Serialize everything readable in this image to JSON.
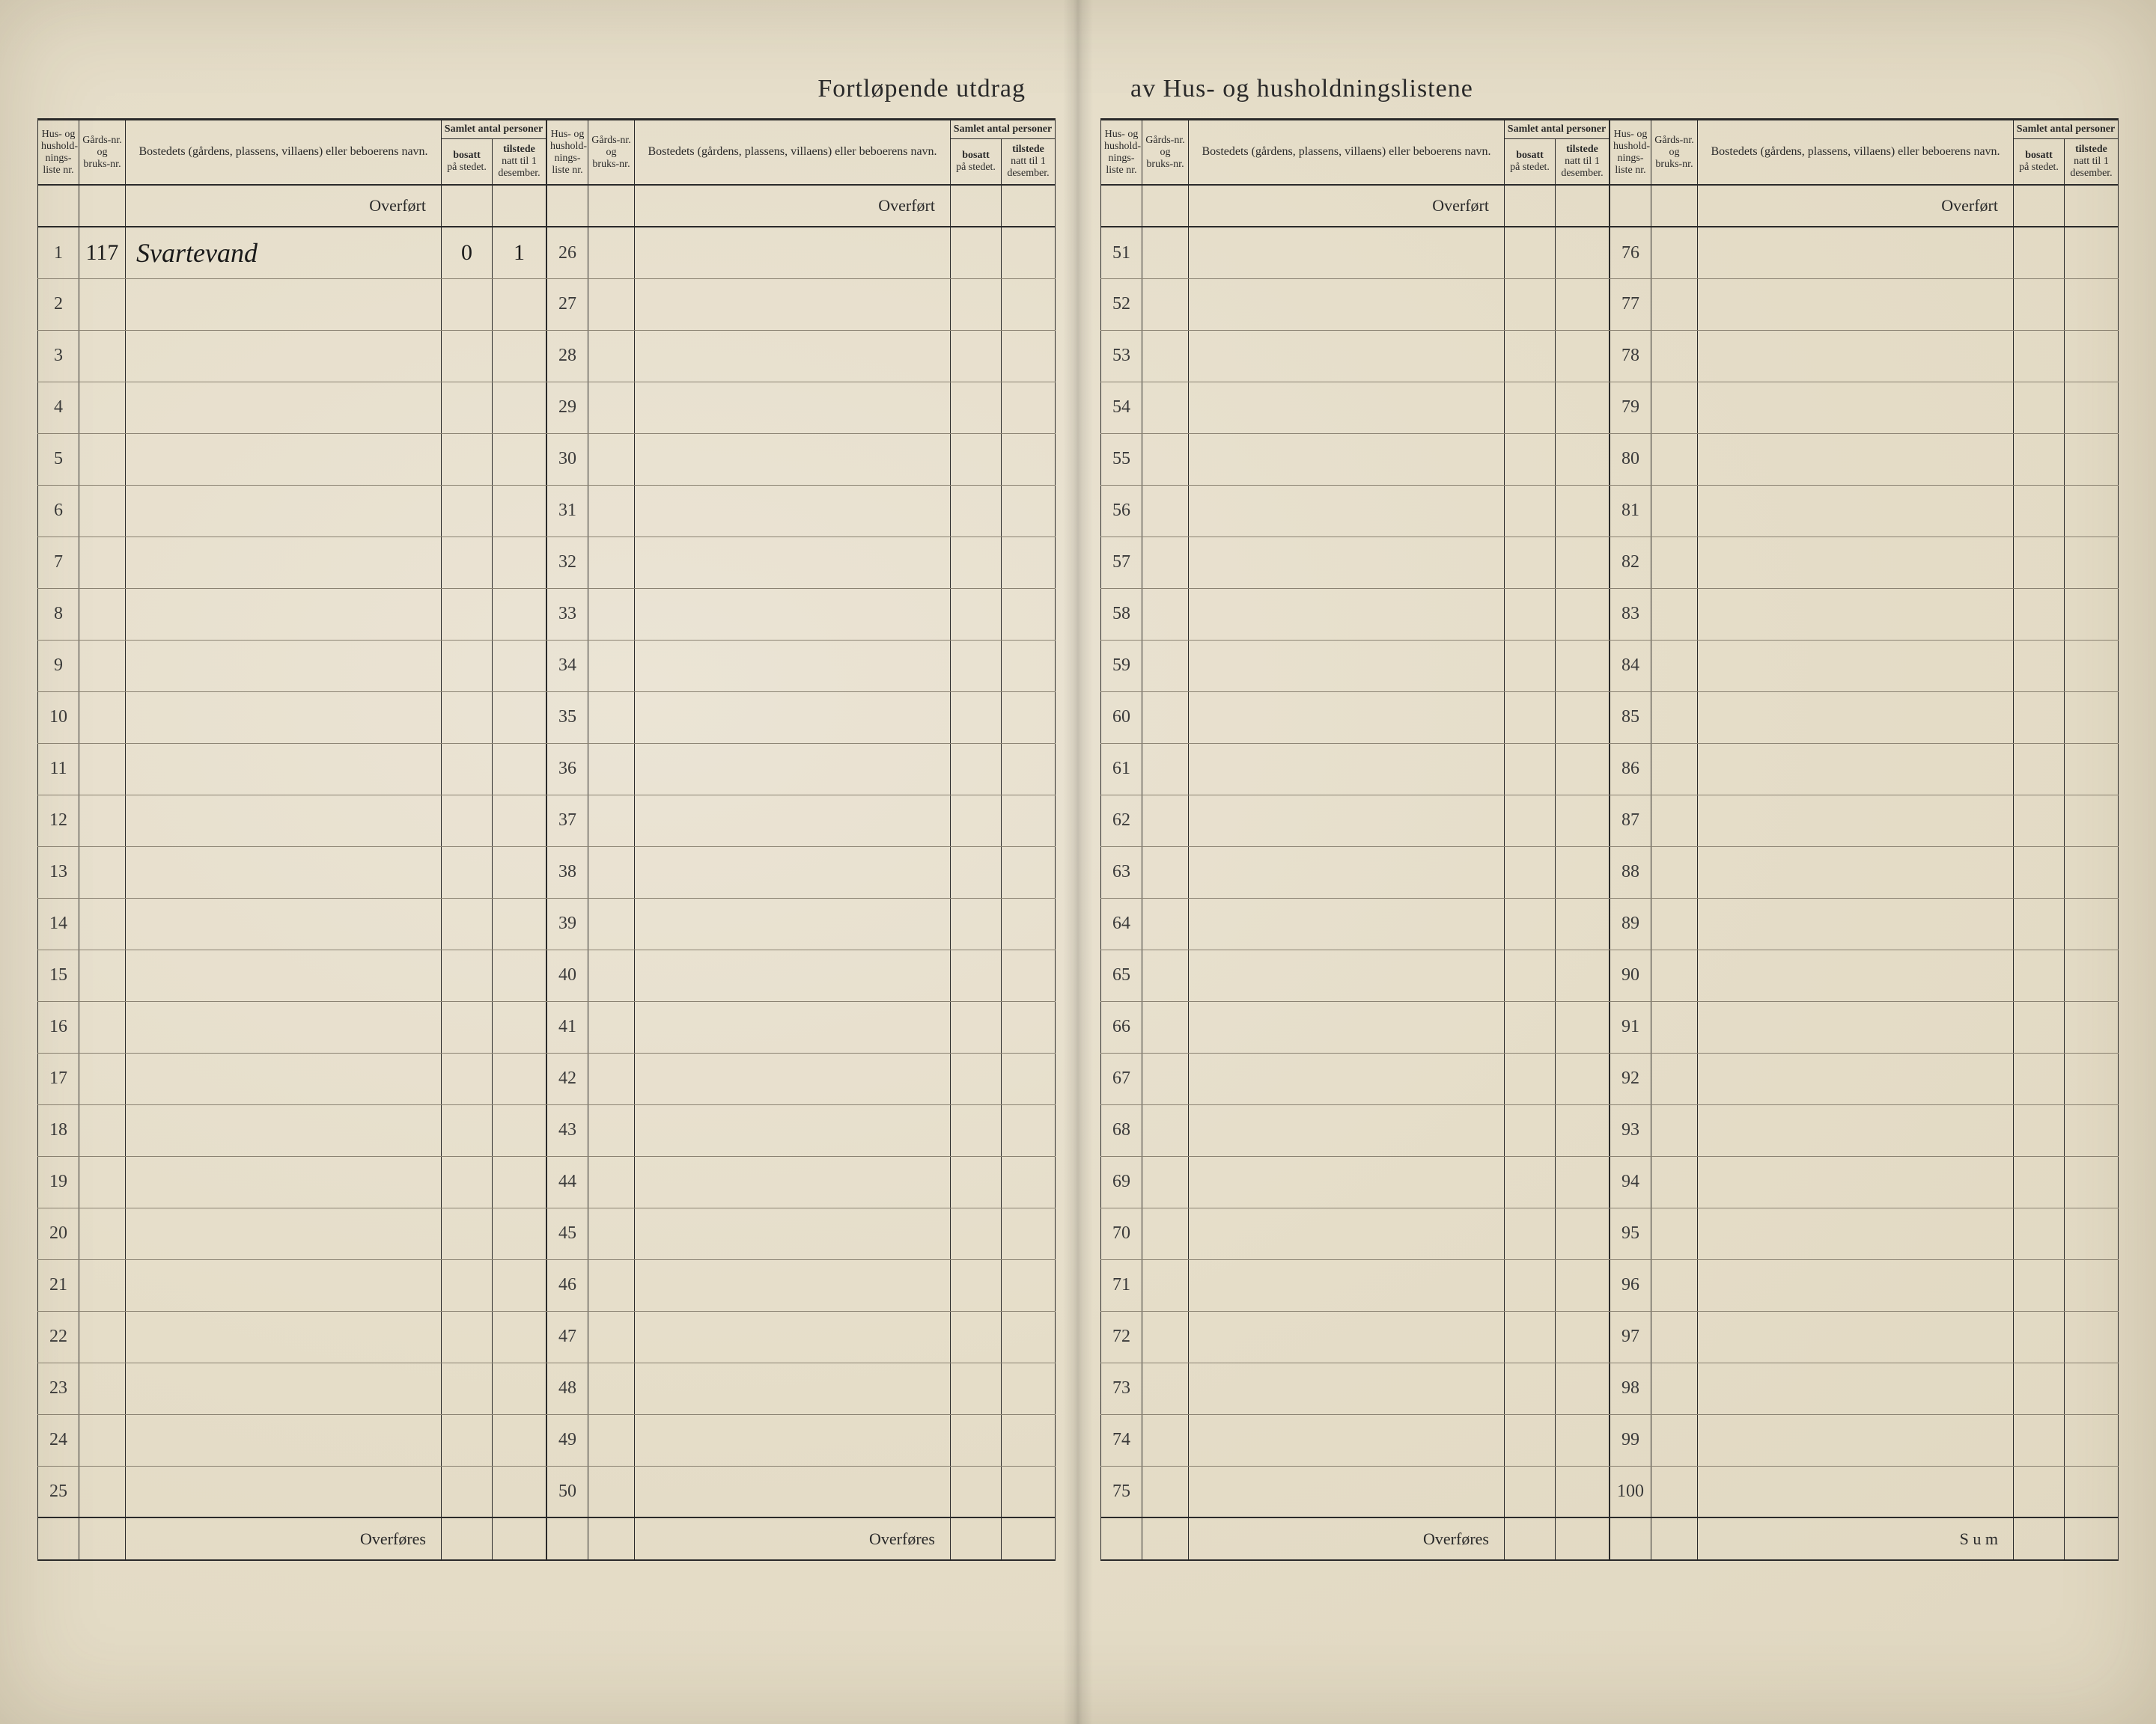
{
  "title_left": "Fortløpende utdrag",
  "title_right": "av Hus- og husholdningslistene",
  "headers": {
    "liste": "Hus- og hushold-nings-liste nr.",
    "gard": "Gårds-nr. og bruks-nr.",
    "name": "Bostedets (gårdens, plassens, villaens) eller beboerens navn.",
    "samlet": "Samlet antal personer",
    "bosatt": "bosatt på stedet.",
    "tilstede": "tilstede natt til 1 desember."
  },
  "overfort": "Overført",
  "overfores": "Overføres",
  "sum": "S u m",
  "row1": {
    "gard": "117",
    "name": "Svartevand",
    "bosatt": "0",
    "tilstede": "1"
  },
  "sections": [
    {
      "start": 1,
      "end": 25,
      "footer": "Overføres",
      "has_data_row": true
    },
    {
      "start": 26,
      "end": 50,
      "footer": "Overføres",
      "has_data_row": false
    },
    {
      "start": 51,
      "end": 75,
      "footer": "Overføres",
      "has_data_row": false
    },
    {
      "start": 76,
      "end": 100,
      "footer": "S u m",
      "has_data_row": false
    }
  ],
  "colors": {
    "paper": "#e8e0d0",
    "ink": "#2a2a2a",
    "rule": "#8a8272"
  }
}
